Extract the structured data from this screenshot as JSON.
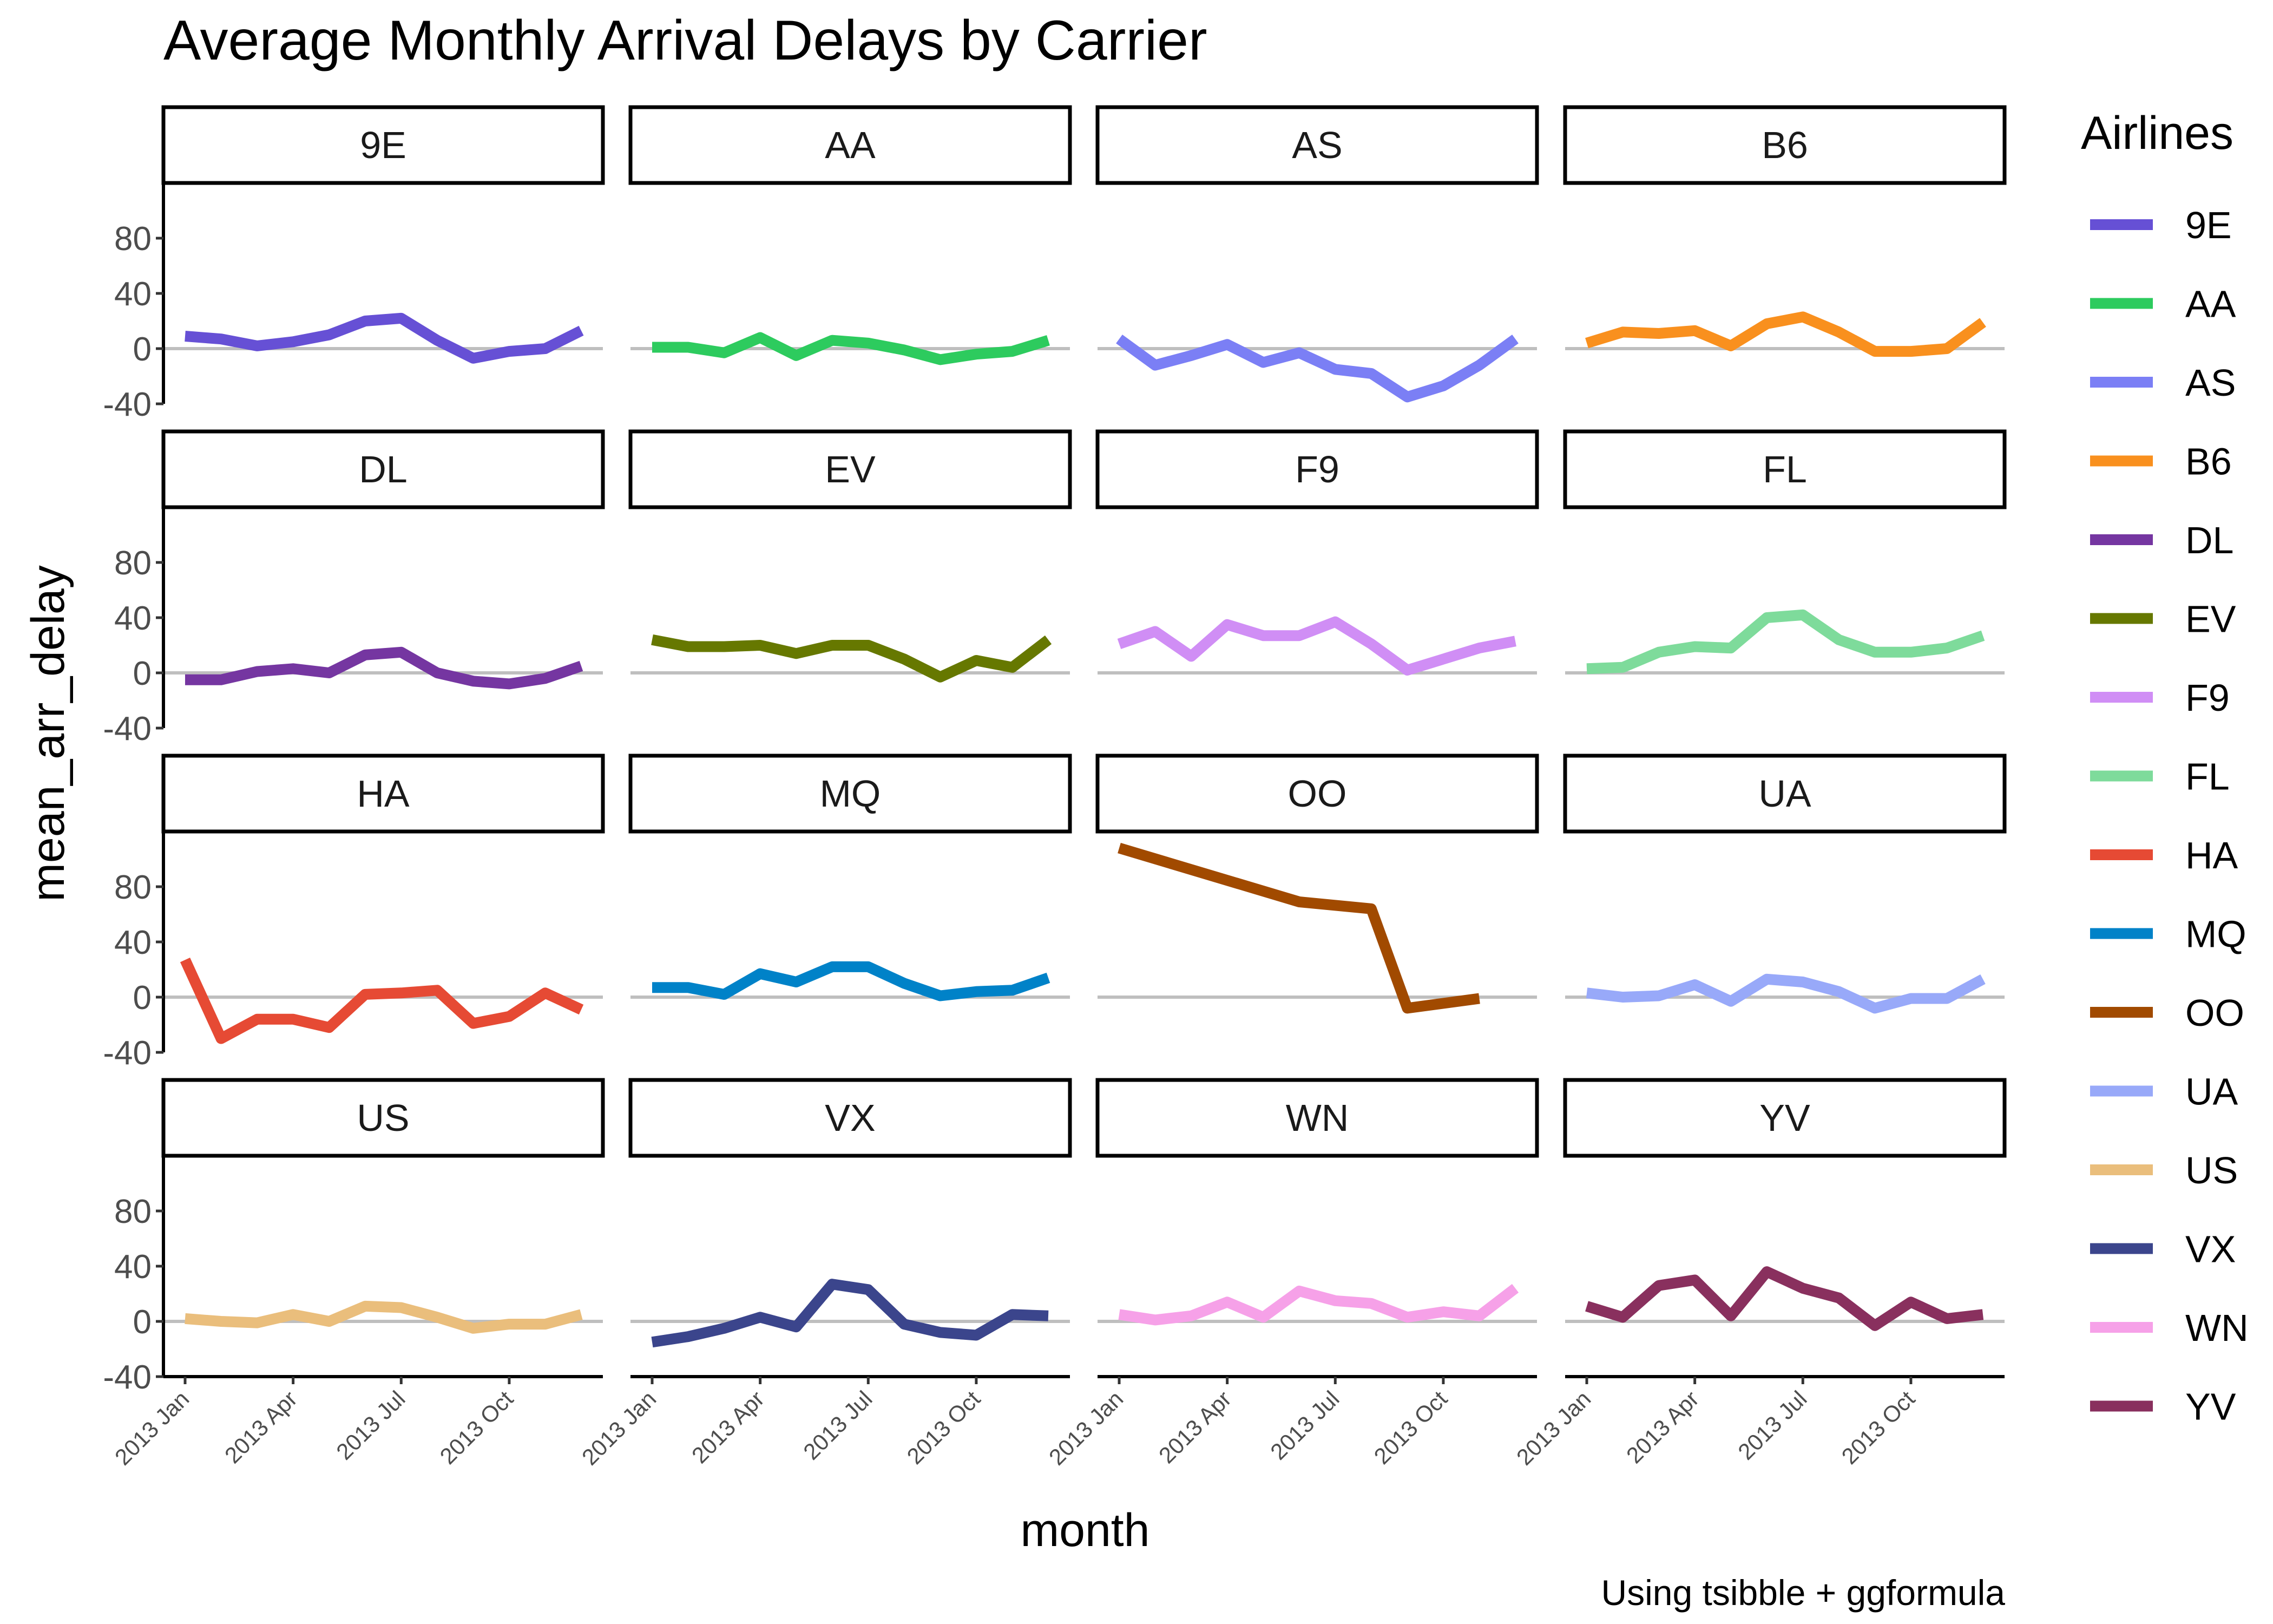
{
  "chart_data": {
    "type": "line",
    "title": "Average Monthly Arrival Delays by Carrier",
    "xlabel": "month",
    "ylabel": "mean_arr_delay",
    "caption": "Using tsibble + ggformula",
    "legend_title": "Airlines",
    "legend_position": "right",
    "facets": "wrap, 4 columns",
    "ylim": [
      -40,
      120
    ],
    "y_ticks": [
      -40,
      0,
      40,
      80
    ],
    "zero_line": true,
    "x_ticks": [
      {
        "month": 1,
        "label": "2013 Jan"
      },
      {
        "month": 4,
        "label": "2013 Apr"
      },
      {
        "month": 7,
        "label": "2013 Jul"
      },
      {
        "month": 10,
        "label": "2013 Oct"
      }
    ],
    "x_months": [
      "2013 Jan",
      "2013 Feb",
      "2013 Mar",
      "2013 Apr",
      "2013 May",
      "2013 Jun",
      "2013 Jul",
      "2013 Aug",
      "2013 Sep",
      "2013 Oct",
      "2013 Nov",
      "2013 Dec"
    ],
    "series": [
      {
        "name": "9E",
        "color": "#6650D5",
        "values": [
          9,
          7,
          2,
          5,
          10,
          20,
          22,
          6,
          -7,
          -2,
          0,
          13
        ]
      },
      {
        "name": "AA",
        "color": "#2DCB5E",
        "values": [
          1,
          1,
          -3,
          8,
          -5,
          6,
          4,
          -1,
          -8,
          -4,
          -2,
          6
        ]
      },
      {
        "name": "AS",
        "color": "#7B7FF5",
        "values": [
          7,
          -12,
          -5,
          3,
          -10,
          -3,
          -15,
          -18,
          -35,
          -27,
          -12,
          7
        ]
      },
      {
        "name": "B6",
        "color": "#F9901E",
        "values": [
          4,
          12,
          11,
          13,
          2,
          18,
          23,
          12,
          -2,
          -2,
          0,
          19
        ]
      },
      {
        "name": "DL",
        "color": "#7536A1",
        "values": [
          -5,
          -5,
          1,
          3,
          0,
          13,
          15,
          0,
          -6,
          -8,
          -4,
          5
        ]
      },
      {
        "name": "EV",
        "color": "#667800",
        "values": [
          24,
          19,
          19,
          20,
          14,
          20,
          20,
          10,
          -3,
          9,
          4,
          24
        ]
      },
      {
        "name": "F9",
        "color": "#D08EF5",
        "values": [
          21,
          30,
          12,
          35,
          27,
          27,
          37,
          21,
          2,
          10,
          18,
          23
        ]
      },
      {
        "name": "FL",
        "color": "#7EDB9B",
        "values": [
          3,
          4,
          15,
          19,
          18,
          40,
          42,
          24,
          15,
          15,
          18,
          27
        ]
      },
      {
        "name": "HA",
        "color": "#E64A34",
        "values": [
          27,
          -30,
          -16,
          -16,
          -22,
          2,
          3,
          5,
          -19,
          -14,
          3,
          -9
        ]
      },
      {
        "name": "MQ",
        "color": "#0082C8",
        "values": [
          7,
          7,
          2,
          17,
          11,
          22,
          22,
          10,
          1,
          4,
          5,
          14
        ]
      },
      {
        "name": "OO",
        "color": "#A14A00",
        "values": [
          108,
          null,
          null,
          null,
          null,
          69,
          null,
          64,
          -8,
          null,
          -1,
          null
        ]
      },
      {
        "name": "UA",
        "color": "#98A9F9",
        "values": [
          3,
          0,
          1,
          9,
          -3,
          13,
          11,
          4,
          -8,
          -1,
          -1,
          13
        ]
      },
      {
        "name": "US",
        "color": "#EABE7C",
        "values": [
          2,
          0,
          -1,
          5,
          0,
          11,
          10,
          3,
          -5,
          -2,
          -2,
          5
        ]
      },
      {
        "name": "VX",
        "color": "#3B458C",
        "values": [
          -15,
          -11,
          -5,
          3,
          -4,
          27,
          23,
          -2,
          -8,
          -10,
          5,
          4
        ]
      },
      {
        "name": "WN",
        "color": "#F6A1E8",
        "values": [
          5,
          1,
          4,
          14,
          3,
          22,
          15,
          13,
          3,
          7,
          4,
          24
        ]
      },
      {
        "name": "YV",
        "color": "#89305E",
        "values": [
          11,
          3,
          26,
          30,
          4,
          36,
          24,
          17,
          -3,
          14,
          2,
          5
        ]
      }
    ]
  }
}
